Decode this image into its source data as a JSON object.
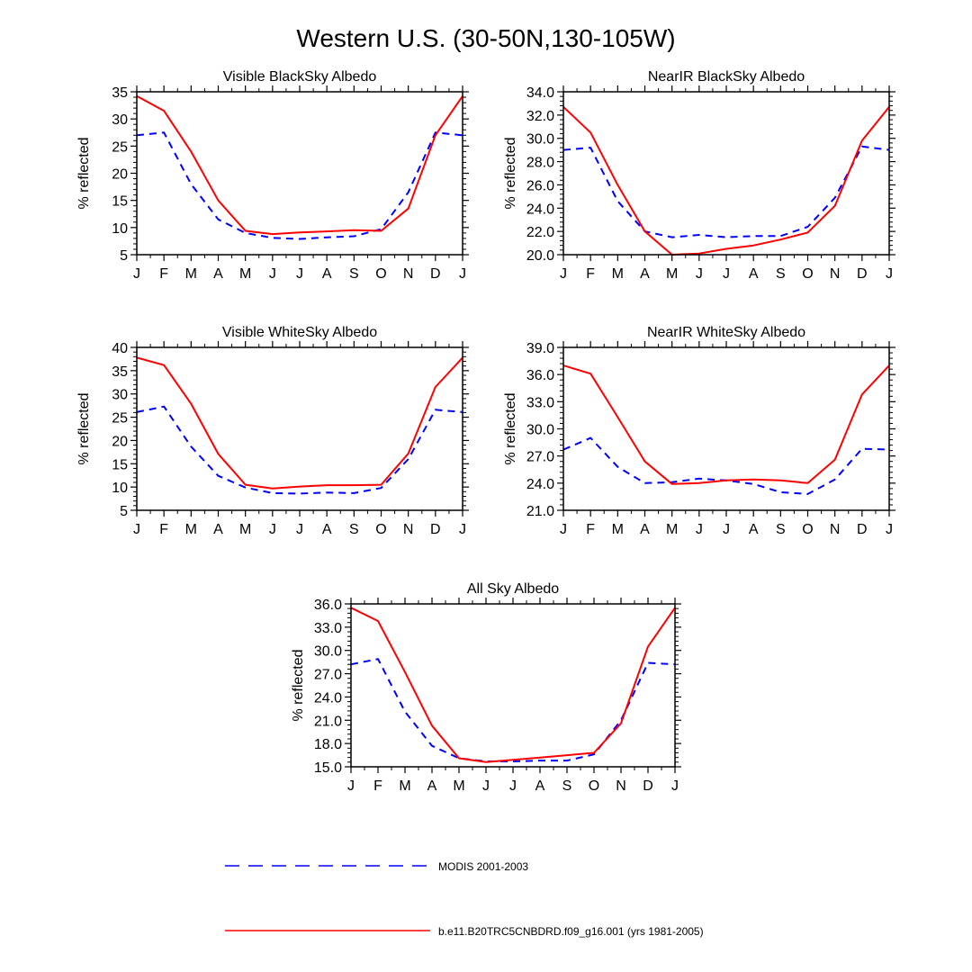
{
  "figure_title": "Western U.S. (30-50N,130-105W)",
  "legend": [
    {
      "label": "MODIS 2001-2003",
      "color": "#0000ff",
      "style": "dashed"
    },
    {
      "label": "b.e11.B20TRC5CNBDRD.f09_g16.001 (yrs 1981-2005)",
      "color": "#ff0000",
      "style": "solid"
    }
  ],
  "chart_data": [
    {
      "type": "line",
      "title": "Visible BlackSky Albedo",
      "ylabel": "% reflected",
      "categories": [
        "J",
        "F",
        "M",
        "A",
        "M",
        "J",
        "J",
        "A",
        "S",
        "O",
        "N",
        "D",
        "J"
      ],
      "ylim": [
        5,
        35
      ],
      "yticks": [
        "5",
        "10",
        "15",
        "20",
        "25",
        "30",
        "35"
      ],
      "grid": false,
      "series": [
        {
          "name": "MODIS 2001-2003",
          "style": "dashed",
          "color": "#0000ff",
          "values": [
            27.0,
            27.5,
            18.0,
            11.5,
            9.0,
            8.1,
            7.9,
            8.2,
            8.4,
            9.7,
            16.5,
            27.5,
            27.0
          ]
        },
        {
          "name": "b.e11.B20TRC5CNBDRD.f09_g16.001 (yrs 1981-2005)",
          "style": "solid",
          "color": "#ff0000",
          "values": [
            34.2,
            31.5,
            24.0,
            15.0,
            9.4,
            8.8,
            9.1,
            9.3,
            9.5,
            9.4,
            13.5,
            27.0,
            34.2
          ]
        }
      ]
    },
    {
      "type": "line",
      "title": "NearIR BlackSky Albedo",
      "ylabel": "% reflected",
      "categories": [
        "J",
        "F",
        "M",
        "A",
        "M",
        "J",
        "J",
        "A",
        "S",
        "O",
        "N",
        "D",
        "J"
      ],
      "ylim": [
        20,
        34
      ],
      "yticks": [
        "20.0",
        "22.0",
        "24.0",
        "26.0",
        "28.0",
        "30.0",
        "32.0",
        "34.0"
      ],
      "grid": false,
      "series": [
        {
          "name": "MODIS 2001-2003",
          "style": "dashed",
          "color": "#0000ff",
          "values": [
            29.0,
            29.2,
            24.6,
            22.0,
            21.5,
            21.7,
            21.5,
            21.6,
            21.6,
            22.4,
            24.9,
            29.3,
            29.0
          ]
        },
        {
          "name": "b.e11.B20TRC5CNBDRD.f09_g16.001 (yrs 1981-2005)",
          "style": "solid",
          "color": "#ff0000",
          "values": [
            32.7,
            30.5,
            26.0,
            22.0,
            20.0,
            20.1,
            20.5,
            20.8,
            21.3,
            21.9,
            24.2,
            29.8,
            32.7
          ]
        }
      ]
    },
    {
      "type": "line",
      "title": "Visible WhiteSky Albedo",
      "ylabel": "% reflected",
      "categories": [
        "J",
        "F",
        "M",
        "A",
        "M",
        "J",
        "J",
        "A",
        "S",
        "O",
        "N",
        "D",
        "J"
      ],
      "ylim": [
        5,
        40
      ],
      "yticks": [
        "5",
        "10",
        "15",
        "20",
        "25",
        "30",
        "35",
        "40"
      ],
      "grid": false,
      "series": [
        {
          "name": "MODIS 2001-2003",
          "style": "dashed",
          "color": "#0000ff",
          "values": [
            26.1,
            27.3,
            18.7,
            12.4,
            9.9,
            8.7,
            8.6,
            8.8,
            8.7,
            9.8,
            16.0,
            26.6,
            26.1
          ]
        },
        {
          "name": "b.e11.B20TRC5CNBDRD.f09_g16.001 (yrs 1981-2005)",
          "style": "solid",
          "color": "#ff0000",
          "values": [
            37.8,
            36.2,
            27.9,
            17.1,
            10.5,
            9.7,
            10.1,
            10.4,
            10.4,
            10.5,
            17.2,
            31.5,
            37.8
          ]
        }
      ]
    },
    {
      "type": "line",
      "title": "NearIR WhiteSky Albedo",
      "ylabel": "% reflected",
      "categories": [
        "J",
        "F",
        "M",
        "A",
        "M",
        "J",
        "J",
        "A",
        "S",
        "O",
        "N",
        "D",
        "J"
      ],
      "ylim": [
        21,
        39
      ],
      "yticks": [
        "21.0",
        "24.0",
        "27.0",
        "30.0",
        "33.0",
        "36.0",
        "39.0"
      ],
      "grid": false,
      "series": [
        {
          "name": "MODIS 2001-2003",
          "style": "dashed",
          "color": "#0000ff",
          "values": [
            27.7,
            29.0,
            25.8,
            24.0,
            24.1,
            24.5,
            24.3,
            23.9,
            23.0,
            22.8,
            24.4,
            27.8,
            27.7
          ]
        },
        {
          "name": "b.e11.B20TRC5CNBDRD.f09_g16.001 (yrs 1981-2005)",
          "style": "solid",
          "color": "#ff0000",
          "values": [
            37.0,
            36.1,
            31.3,
            26.4,
            23.9,
            24.0,
            24.3,
            24.4,
            24.3,
            24.0,
            26.6,
            33.8,
            37.0
          ]
        }
      ]
    },
    {
      "type": "line",
      "title": "All Sky Albedo",
      "ylabel": "% reflected",
      "categories": [
        "J",
        "F",
        "M",
        "A",
        "M",
        "J",
        "J",
        "A",
        "S",
        "O",
        "N",
        "D",
        "J"
      ],
      "ylim": [
        15,
        36
      ],
      "yticks": [
        "15.0",
        "18.0",
        "21.0",
        "24.0",
        "27.0",
        "30.0",
        "33.0",
        "36.0"
      ],
      "grid": false,
      "series": [
        {
          "name": "MODIS 2001-2003",
          "style": "dashed",
          "color": "#0000ff",
          "values": [
            28.2,
            28.9,
            22.1,
            17.7,
            16.1,
            15.7,
            15.7,
            15.8,
            15.8,
            16.6,
            21.0,
            28.4,
            28.2
          ]
        },
        {
          "name": "b.e11.B20TRC5CNBDRD.f09_g16.001 (yrs 1981-2005)",
          "style": "solid",
          "color": "#ff0000",
          "values": [
            35.5,
            33.8,
            27.2,
            20.3,
            16.1,
            15.6,
            15.9,
            16.2,
            16.5,
            16.8,
            20.6,
            30.5,
            35.5
          ]
        }
      ]
    }
  ]
}
